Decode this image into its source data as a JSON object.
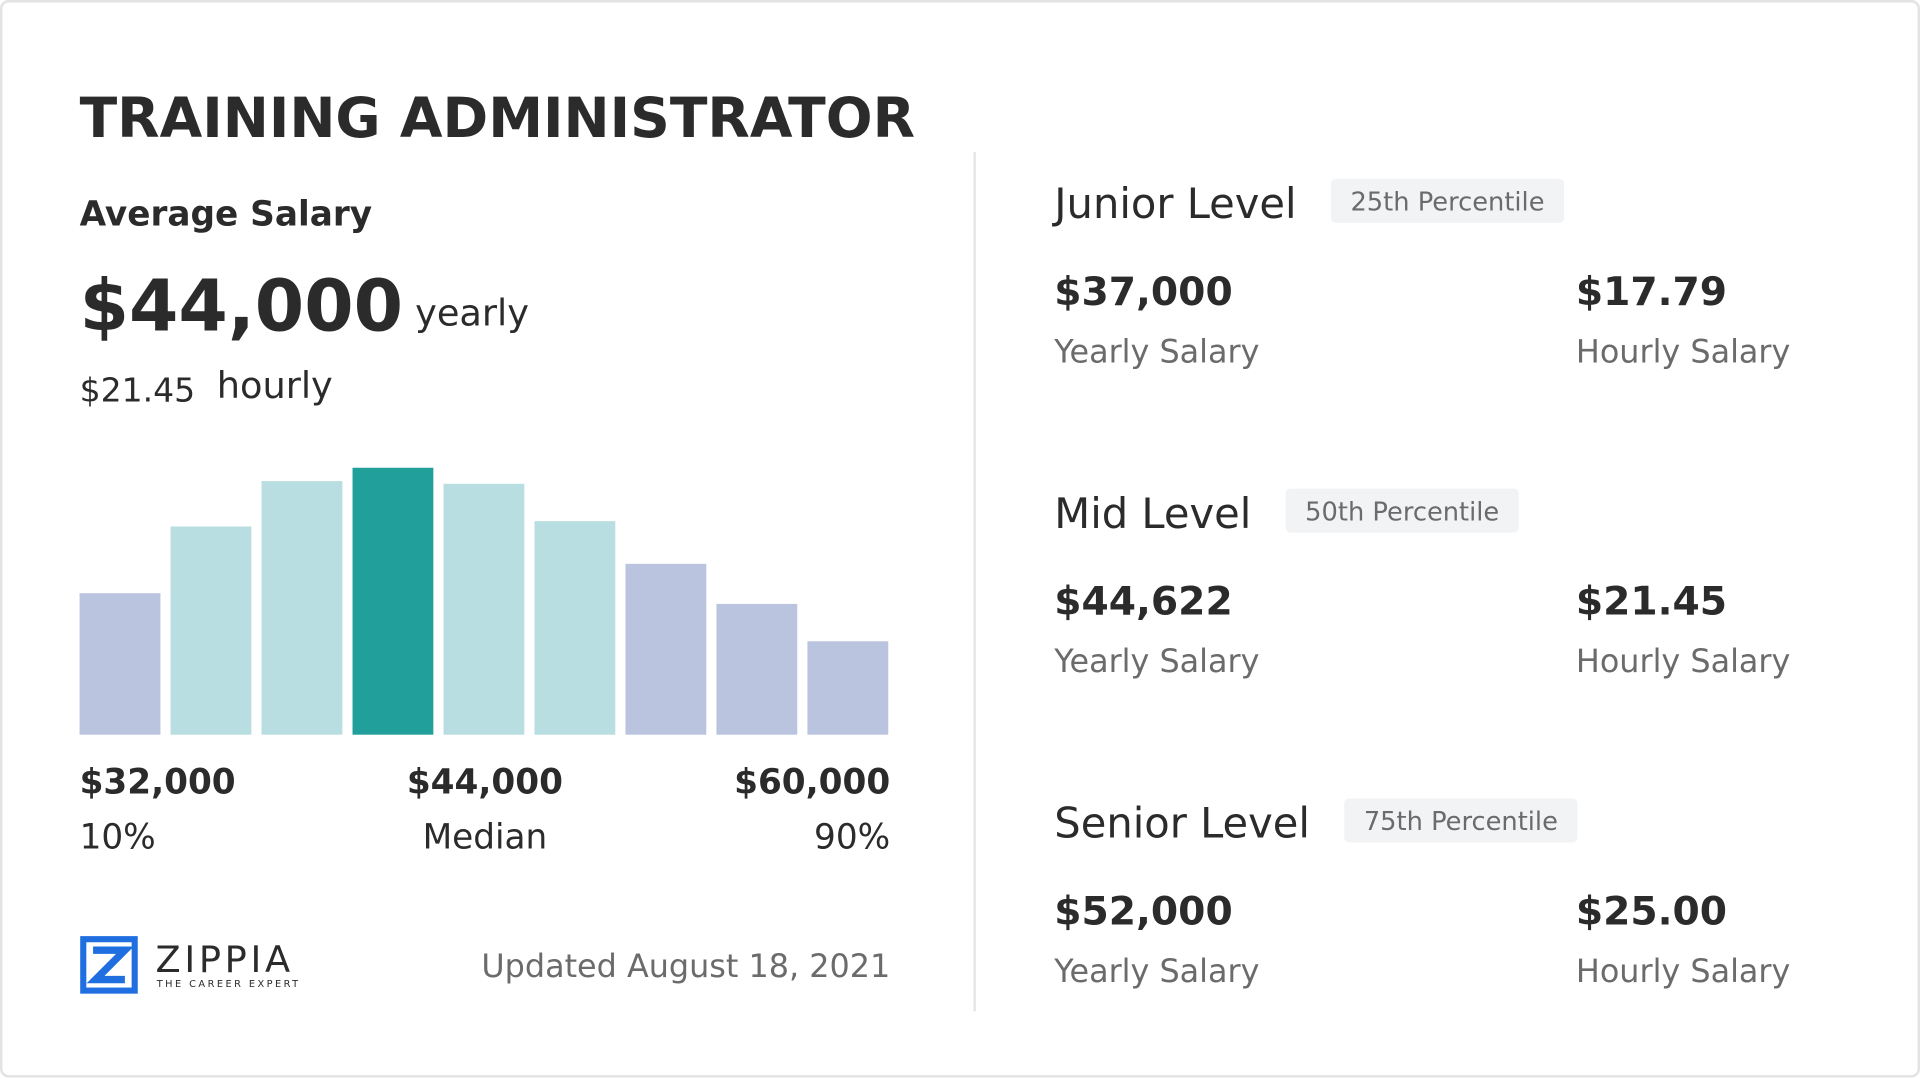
{
  "title": "TRAINING ADMINISTRATOR",
  "average": {
    "label": "Average Salary",
    "yearly": "$44,000",
    "yearly_unit": "yearly",
    "hourly": "$21.45",
    "hourly_unit": "hourly"
  },
  "chart_data": {
    "type": "bar",
    "values": [
      53,
      78,
      95,
      100,
      94,
      80,
      64,
      49,
      35
    ],
    "colors": [
      "#bac4de",
      "#b9dee1",
      "#b9dee1",
      "#21a09b",
      "#b9dee1",
      "#b9dee1",
      "#bac4de",
      "#bac4de",
      "#bac4de"
    ],
    "ylim": [
      0,
      100
    ]
  },
  "scale": [
    {
      "value": "$32,000",
      "label": "10%"
    },
    {
      "value": "$44,000",
      "label": "Median"
    },
    {
      "value": "$60,000",
      "label": "90%"
    }
  ],
  "levels": [
    {
      "name": "Junior Level",
      "percentile": "25th Percentile",
      "yearly": "$37,000",
      "yearly_label": "Yearly Salary",
      "hourly": "$17.79",
      "hourly_label": "Hourly Salary"
    },
    {
      "name": "Mid Level",
      "percentile": "50th Percentile",
      "yearly": "$44,622",
      "yearly_label": "Yearly Salary",
      "hourly": "$21.45",
      "hourly_label": "Hourly Salary"
    },
    {
      "name": "Senior Level",
      "percentile": "75th Percentile",
      "yearly": "$52,000",
      "yearly_label": "Yearly Salary",
      "hourly": "$25.00",
      "hourly_label": "Hourly Salary"
    }
  ],
  "brand": {
    "name": "ZIPPIA",
    "tagline": "THE CAREER EXPERT"
  },
  "updated": "Updated August 18, 2021"
}
